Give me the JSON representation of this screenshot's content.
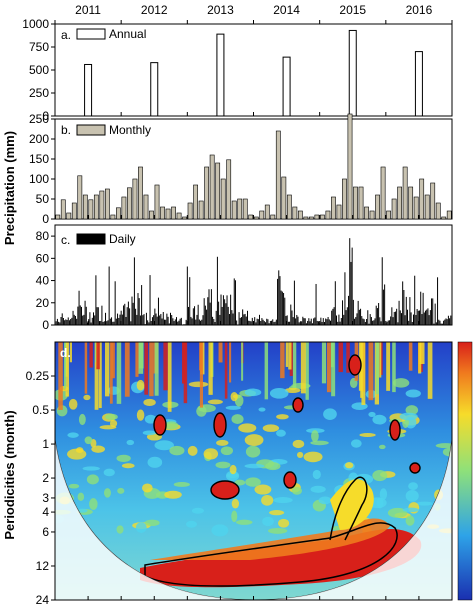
{
  "years": [
    "2011",
    "2012",
    "2013",
    "2014",
    "2015",
    "2016"
  ],
  "ylabel_top": "Precipitation (mm)",
  "ylabel_bottom": "Periodicities (month)",
  "colors": {
    "annual_fill": "#ffffff",
    "monthly_fill": "#c8c2b0",
    "daily_fill": "#000000",
    "contour": "#000000"
  },
  "chart_data": [
    {
      "type": "bar",
      "panel_label": "a.",
      "legend": "Annual",
      "ylim": [
        0,
        1000
      ],
      "yticks": [
        0,
        250,
        500,
        750,
        1000
      ],
      "year_positions": [
        0.5,
        1.5,
        2.5,
        3.5,
        4.5,
        5.5
      ],
      "values": [
        560,
        580,
        890,
        640,
        930,
        700
      ]
    },
    {
      "type": "bar",
      "panel_label": "b.",
      "legend": "Monthly",
      "ylim": [
        0,
        250
      ],
      "yticks": [
        0,
        50,
        100,
        150,
        200,
        250
      ],
      "months_from_start": 72,
      "values": [
        10,
        48,
        15,
        40,
        108,
        60,
        48,
        60,
        70,
        75,
        10,
        28,
        55,
        78,
        100,
        130,
        60,
        20,
        85,
        30,
        25,
        30,
        15,
        5,
        40,
        85,
        45,
        130,
        160,
        140,
        100,
        148,
        45,
        50,
        50,
        10,
        5,
        20,
        35,
        10,
        220,
        105,
        60,
        30,
        20,
        5,
        5,
        10,
        10,
        20,
        55,
        35,
        100,
        265,
        80,
        80,
        30,
        20,
        60,
        130,
        20,
        50,
        80,
        130,
        80,
        55,
        100,
        60,
        90,
        40,
        5,
        20
      ]
    },
    {
      "type": "bar",
      "panel_label": "c.",
      "legend": "Daily",
      "ylim": [
        0,
        90
      ],
      "yticks": [
        0,
        20,
        40,
        60,
        80
      ]
    },
    {
      "type": "heatmap",
      "panel_label": "d.",
      "yticks": [
        "0.25",
        "0.5",
        "1",
        "2",
        "3",
        "4",
        "6",
        "12",
        "24"
      ],
      "ytick_values": [
        0.25,
        0.5,
        1,
        2,
        3,
        4,
        6,
        12,
        24
      ],
      "colorbar": "blue-to-red"
    }
  ]
}
